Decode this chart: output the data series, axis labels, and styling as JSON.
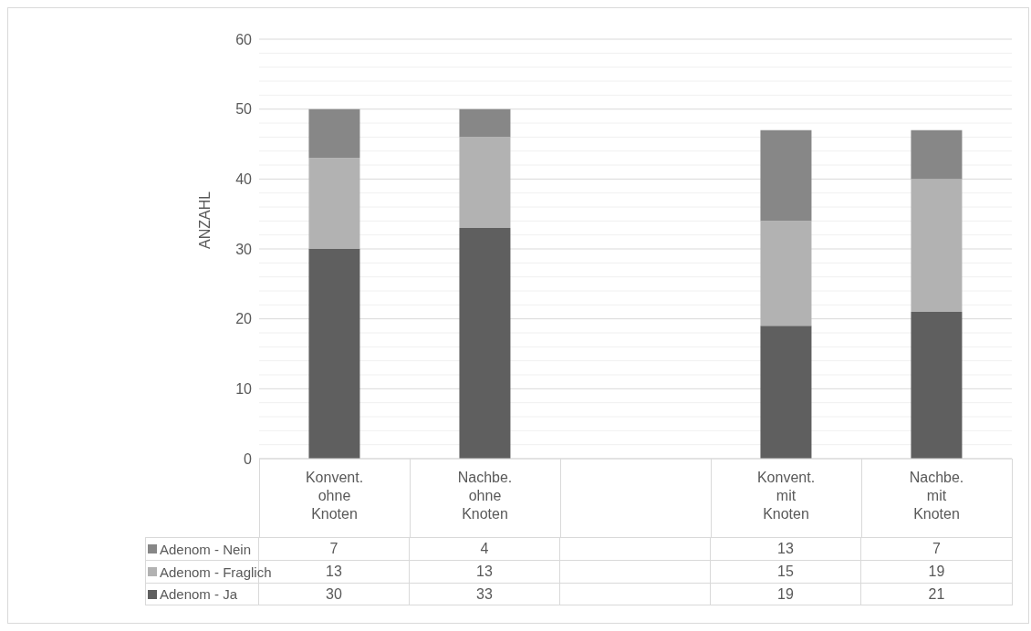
{
  "chart_data": {
    "type": "bar",
    "stacked": true,
    "ylabel": "ANZAHL",
    "categories": [
      "Konvent. ohne Knoten",
      "Nachbe. ohne Knoten",
      null,
      "Konvent. mit Knoten",
      "Nachbe. mit Knoten"
    ],
    "series": [
      {
        "name": "Adenom - Ja",
        "color": "#5f5f5f",
        "values": [
          30,
          33,
          null,
          19,
          21
        ]
      },
      {
        "name": "Adenom - Fraglich",
        "color": "#b2b2b2",
        "values": [
          13,
          13,
          null,
          15,
          19
        ]
      },
      {
        "name": "Adenom - Nein",
        "color": "#878787",
        "values": [
          7,
          4,
          null,
          13,
          7
        ]
      }
    ],
    "ylim": [
      0,
      60
    ],
    "yticks": [
      0,
      {
        "value": 2,
        "label": null
      },
      {
        "value": 4,
        "label": null
      },
      {
        "value": 6,
        "label": null
      },
      {
        "value": 8,
        "label": null
      },
      10,
      {
        "value": 12,
        "label": null
      },
      {
        "value": 14,
        "label": null
      },
      {
        "value": 16,
        "label": null
      },
      {
        "value": 18,
        "label": null
      },
      20,
      {
        "value": 22,
        "label": null
      },
      {
        "value": 24,
        "label": null
      },
      {
        "value": 26,
        "label": null
      },
      {
        "value": 28,
        "label": null
      },
      30,
      {
        "value": 32,
        "label": null
      },
      {
        "value": 34,
        "label": null
      },
      {
        "value": 36,
        "label": null
      },
      {
        "value": 38,
        "label": null
      },
      40,
      {
        "value": 42,
        "label": null
      },
      {
        "value": 44,
        "label": null
      },
      {
        "value": 46,
        "label": null
      },
      {
        "value": 48,
        "label": null
      },
      50,
      {
        "value": 52,
        "label": null
      },
      {
        "value": 54,
        "label": null
      },
      {
        "value": 56,
        "label": null
      },
      {
        "value": 58,
        "label": null
      },
      60
    ],
    "grid": true,
    "legend": "bottom",
    "data_labels": true
  }
}
